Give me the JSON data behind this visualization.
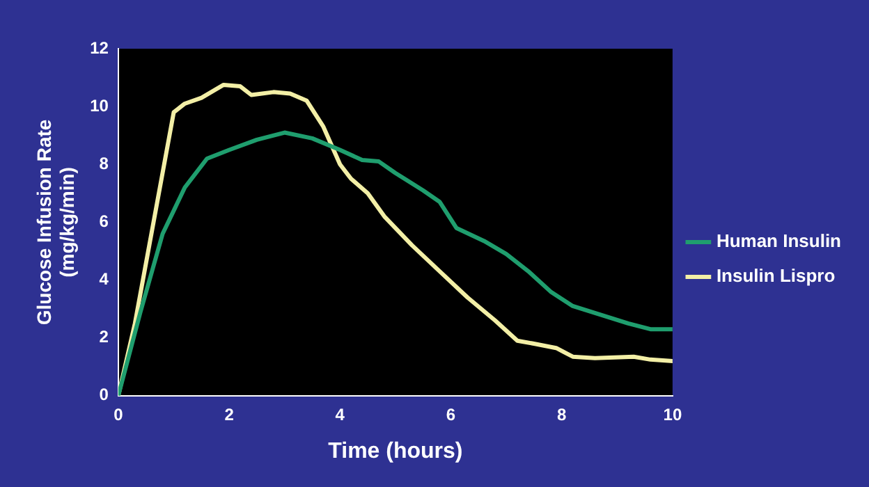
{
  "chart_data": {
    "type": "line",
    "xlabel": "Time (hours)",
    "ylabel": "Glucose Infusion Rate (mg/kg/min)",
    "xlim": [
      0,
      10
    ],
    "xticks": [
      0,
      2,
      4,
      6,
      8,
      10
    ],
    "ylim": [
      0,
      12
    ],
    "yticks": [
      0,
      2,
      4,
      6,
      8,
      10,
      12
    ],
    "grid": false,
    "legend": "right",
    "marker": "none",
    "series": [
      {
        "name": "Human Insulin",
        "color": "#1f9e6e",
        "x": [
          0,
          0.4,
          0.8,
          1.2,
          1.6,
          2,
          2.5,
          3,
          3.5,
          4,
          4.4,
          4.7,
          5,
          5.5,
          5.8,
          6.1,
          6.6,
          7,
          7.4,
          7.8,
          8.2,
          8.7,
          9.2,
          9.6,
          10
        ],
        "values": [
          0,
          2.9,
          5.6,
          7.2,
          8.2,
          8.5,
          8.85,
          9.1,
          8.9,
          8.5,
          8.15,
          8.1,
          7.7,
          7.1,
          6.7,
          5.8,
          5.35,
          4.9,
          4.3,
          3.6,
          3.1,
          2.8,
          2.5,
          2.3,
          2.3
        ]
      },
      {
        "name": "Insulin Lispro",
        "color": "#f3efa6",
        "x": [
          0,
          0.3,
          1,
          1.2,
          1.5,
          1.9,
          2.2,
          2.4,
          2.8,
          3.1,
          3.4,
          3.7,
          4,
          4.2,
          4.5,
          4.8,
          5.3,
          5.8,
          6.3,
          6.8,
          7.2,
          7.5,
          7.9,
          8.2,
          8.6,
          9.3,
          9.6,
          10
        ],
        "values": [
          0,
          2.5,
          9.8,
          10.1,
          10.3,
          10.75,
          10.7,
          10.4,
          10.5,
          10.45,
          10.2,
          9.3,
          8,
          7.5,
          7,
          6.2,
          5.2,
          4.3,
          3.4,
          2.6,
          1.9,
          1.8,
          1.65,
          1.35,
          1.3,
          1.35,
          1.25,
          1.2
        ]
      }
    ]
  }
}
